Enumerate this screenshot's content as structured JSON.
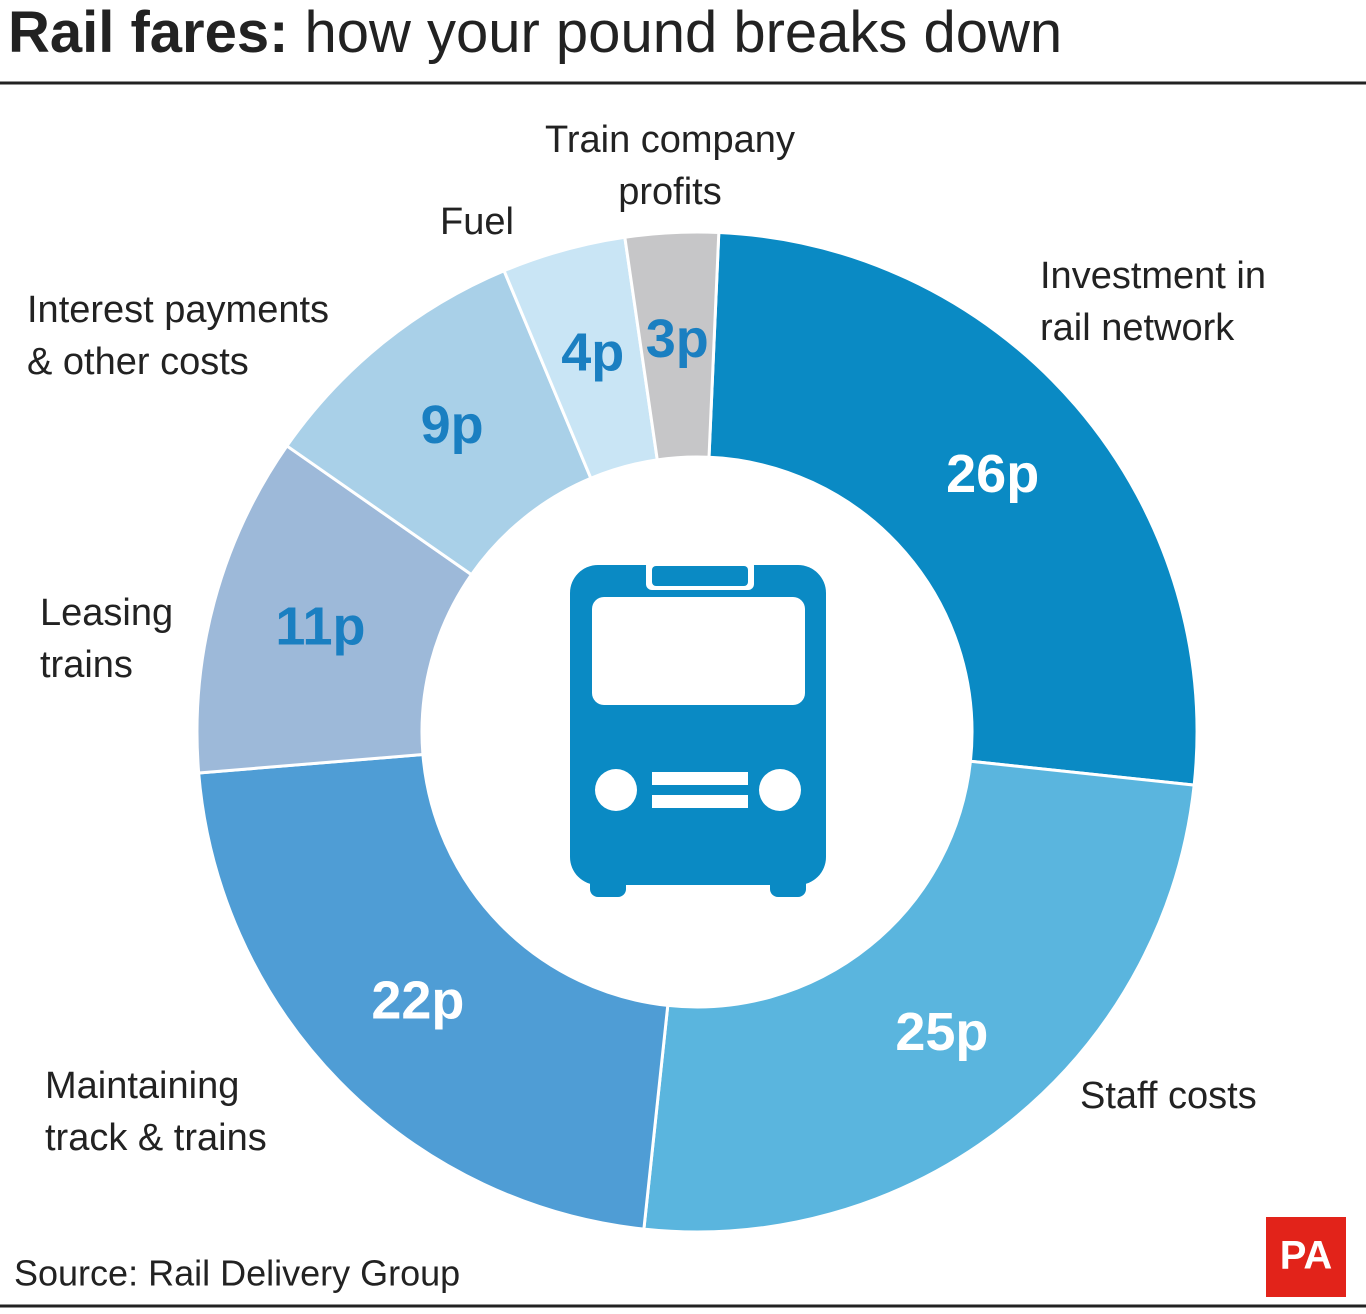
{
  "chart_data": {
    "type": "donut",
    "title": [
      "Rail fares:",
      "how your pound breaks down"
    ],
    "categories": [
      "Investment in\nrail network",
      "Staff costs",
      "Maintaining\ntrack & trains",
      "Leasing\ntrains",
      "Interest payments\n& other costs",
      "Fuel",
      "Train company\nprofits"
    ],
    "values": [
      26,
      25,
      22,
      11,
      9,
      4,
      3
    ],
    "value_labels": [
      "26p",
      "25p",
      "22p",
      "11p",
      "9p",
      "4p",
      "3p"
    ],
    "colors": [
      "#0a8ac4",
      "#5ab5de",
      "#4f9dd5",
      "#9db9d9",
      "#a9d0e8",
      "#c9e5f5",
      "#c6c6c8"
    ],
    "value_label_colors": [
      "#ffffff",
      "#ffffff",
      "#ffffff",
      "#1a7fc1",
      "#1a7fc1",
      "#1a7fc1",
      "#1a7fc1"
    ],
    "source": "Source: Rail Delivery Group",
    "logo": "PA"
  }
}
